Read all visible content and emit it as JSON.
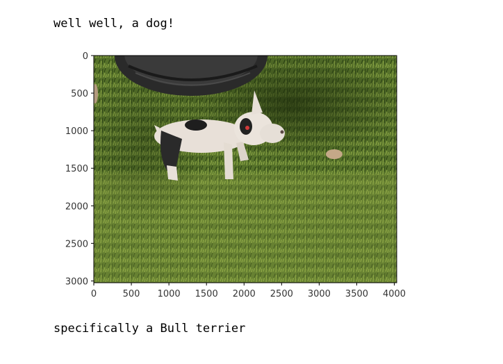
{
  "notebook": {
    "output_line_1": "well well, a dog!",
    "output_line_2": "specifically a Bull terrier"
  },
  "image_plot": {
    "x_ticks": [
      "0",
      "500",
      "1000",
      "1500",
      "2000",
      "2500",
      "3000",
      "3500",
      "4000"
    ],
    "y_ticks": [
      "0",
      "500",
      "1000",
      "1500",
      "2000",
      "2500",
      "3000"
    ],
    "x_range": [
      0,
      4032
    ],
    "y_range": [
      0,
      3024
    ],
    "image_subject": "puppy on grass",
    "colors": {
      "grass_dark": "#3f5a1e",
      "grass_light": "#7f9a3a",
      "dog_white": "#e6dfd8",
      "dog_black": "#222222",
      "tire": "#2b2b2b"
    }
  }
}
